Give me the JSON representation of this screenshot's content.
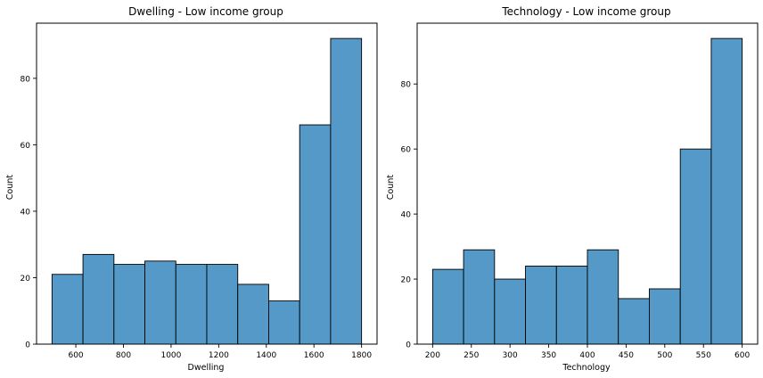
{
  "chart_data": [
    {
      "type": "bar",
      "subtype": "histogram",
      "title": "Dwelling - Low income group",
      "xlabel": "Dwelling",
      "ylabel": "Count",
      "bins": [
        {
          "x0": 500,
          "x1": 630,
          "count": 21
        },
        {
          "x0": 630,
          "x1": 760,
          "count": 27
        },
        {
          "x0": 760,
          "x1": 890,
          "count": 24
        },
        {
          "x0": 890,
          "x1": 1020,
          "count": 25
        },
        {
          "x0": 1020,
          "x1": 1150,
          "count": 24
        },
        {
          "x0": 1150,
          "x1": 1280,
          "count": 24
        },
        {
          "x0": 1280,
          "x1": 1410,
          "count": 18
        },
        {
          "x0": 1410,
          "x1": 1540,
          "count": 13
        },
        {
          "x0": 1540,
          "x1": 1670,
          "count": 66
        },
        {
          "x0": 1670,
          "x1": 1800,
          "count": 92
        }
      ],
      "xlim": [
        435,
        1865
      ],
      "ylim": [
        0,
        96.6
      ],
      "xticks": [
        600,
        800,
        1000,
        1200,
        1400,
        1600,
        1800
      ],
      "yticks": [
        0,
        20,
        40,
        60,
        80
      ],
      "bar_color": "#5499c7",
      "edge_color": "#000000"
    },
    {
      "type": "bar",
      "subtype": "histogram",
      "title": "Technology - Low income group",
      "xlabel": "Technology",
      "ylabel": "Count",
      "bins": [
        {
          "x0": 200,
          "x1": 240,
          "count": 23
        },
        {
          "x0": 240,
          "x1": 280,
          "count": 29
        },
        {
          "x0": 280,
          "x1": 320,
          "count": 20
        },
        {
          "x0": 320,
          "x1": 360,
          "count": 24
        },
        {
          "x0": 360,
          "x1": 400,
          "count": 24
        },
        {
          "x0": 400,
          "x1": 440,
          "count": 29
        },
        {
          "x0": 440,
          "x1": 480,
          "count": 14
        },
        {
          "x0": 480,
          "x1": 520,
          "count": 17
        },
        {
          "x0": 520,
          "x1": 560,
          "count": 60
        },
        {
          "x0": 560,
          "x1": 600,
          "count": 94
        }
      ],
      "xlim": [
        180,
        620
      ],
      "ylim": [
        0,
        98.7
      ],
      "xticks": [
        200,
        250,
        300,
        350,
        400,
        450,
        500,
        550,
        600
      ],
      "yticks": [
        0,
        20,
        40,
        60,
        80
      ],
      "bar_color": "#5499c7",
      "edge_color": "#000000"
    }
  ]
}
